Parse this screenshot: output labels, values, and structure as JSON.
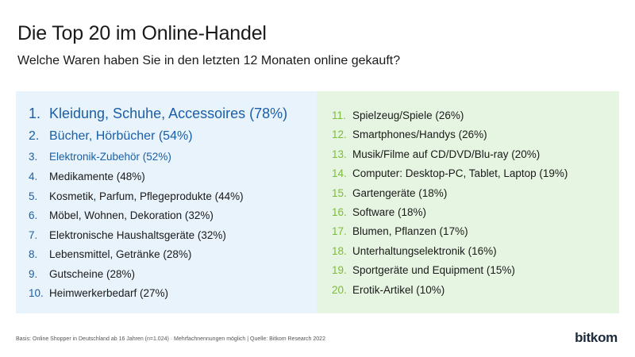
{
  "header": {
    "title": "Die Top 20 im Online-Handel",
    "subtitle": "Welche Waren haben Sie in den letzten 12 Monaten online gekauft?"
  },
  "left_list": [
    {
      "num": "1.",
      "label": "Kleidung, Schuhe, Accessoires (78%)"
    },
    {
      "num": "2.",
      "label": "Bücher, Hörbücher (54%)"
    },
    {
      "num": "3.",
      "label": "Elektronik-Zubehör (52%)"
    },
    {
      "num": "4.",
      "label": "Medikamente (48%)"
    },
    {
      "num": "5.",
      "label": "Kosmetik, Parfum, Pflegeprodukte (44%)"
    },
    {
      "num": "6.",
      "label": "Möbel, Wohnen, Dekoration (32%)"
    },
    {
      "num": "7.",
      "label": "Elektronische Haushaltsgeräte (32%)"
    },
    {
      "num": "8.",
      "label": "Lebensmittel, Getränke (28%)"
    },
    {
      "num": "9.",
      "label": "Gutscheine (28%)"
    },
    {
      "num": "10.",
      "label": "Heimwerkerbedarf (27%)"
    }
  ],
  "right_list": [
    {
      "num": "11.",
      "label": "Spielzeug/Spiele (26%)"
    },
    {
      "num": "12.",
      "label": "Smartphones/Handys (26%)"
    },
    {
      "num": "13.",
      "label": "Musik/Filme auf CD/DVD/Blu-ray (20%)"
    },
    {
      "num": "14.",
      "label": "Computer: Desktop-PC, Tablet, Laptop (19%)"
    },
    {
      "num": "15.",
      "label": "Gartengeräte (18%)"
    },
    {
      "num": "16.",
      "label": "Software (18%)"
    },
    {
      "num": "17.",
      "label": "Blumen, Pflanzen (17%)"
    },
    {
      "num": "18.",
      "label": "Unterhaltungselektronik (16%)"
    },
    {
      "num": "19.",
      "label": "Sportgeräte und Equipment (15%)"
    },
    {
      "num": "20.",
      "label": "Erotik-Artikel (10%)"
    }
  ],
  "footer": {
    "footnote": "Basis: Online Shopper in Deutschland ab 16 Jahren (n=1.024) · Mehrfachnennungen möglich | Quelle: Bitkom Research 2022",
    "logo": "bitkom"
  },
  "colors": {
    "left_panel": "#e8f3fb",
    "right_panel": "#e6f5e1",
    "accent_blue": "#1a5fa8",
    "accent_green": "#7dbb3a"
  }
}
